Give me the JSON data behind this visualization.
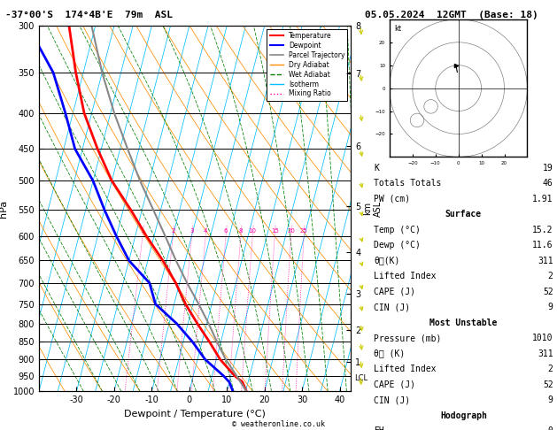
{
  "title_left": "-37°00'S  174°4B'E  79m  ASL",
  "title_right": "05.05.2024  12GMT  (Base: 18)",
  "xlabel": "Dewpoint / Temperature (°C)",
  "ylabel_left": "hPa",
  "xlim": [
    -40,
    43
  ],
  "pressure_levels": [
    300,
    350,
    400,
    450,
    500,
    550,
    600,
    650,
    700,
    750,
    800,
    850,
    900,
    950,
    1000
  ],
  "temp_profile": {
    "pressure": [
      1000,
      970,
      950,
      900,
      850,
      800,
      750,
      700,
      650,
      600,
      550,
      500,
      450,
      400,
      350,
      300
    ],
    "temp": [
      15.2,
      13.5,
      11.0,
      6.0,
      2.0,
      -2.5,
      -7.0,
      -11.0,
      -16.0,
      -22.0,
      -28.0,
      -35.0,
      -41.0,
      -47.0,
      -52.0,
      -57.0
    ]
  },
  "dewp_profile": {
    "pressure": [
      1000,
      970,
      950,
      900,
      850,
      800,
      750,
      700,
      650,
      600,
      550,
      500,
      450,
      400,
      350,
      300
    ],
    "dewp": [
      11.6,
      10.0,
      8.0,
      2.0,
      -2.5,
      -8.0,
      -15.0,
      -18.0,
      -25.0,
      -30.0,
      -35.0,
      -40.0,
      -47.0,
      -52.0,
      -58.0,
      -68.0
    ]
  },
  "parcel_profile": {
    "pressure": [
      1000,
      950,
      900,
      850,
      800,
      750,
      700,
      650,
      600,
      550,
      500,
      450,
      400,
      350,
      300
    ],
    "temp": [
      15.2,
      11.5,
      7.5,
      4.0,
      0.5,
      -3.5,
      -8.0,
      -12.5,
      -17.0,
      -22.0,
      -27.5,
      -33.0,
      -39.0,
      -45.0,
      -51.0
    ]
  },
  "skew_factor": 25.0,
  "temp_color": "#ff0000",
  "dewp_color": "#0000ff",
  "parcel_color": "#888888",
  "dry_adiabat_color": "#ff8c00",
  "wet_adiabat_color": "#008000",
  "isotherm_color": "#00bfff",
  "mixing_ratio_color": "#ff00aa",
  "background_color": "#ffffff",
  "mixing_ratio_labels": [
    1,
    2,
    3,
    4,
    6,
    8,
    10,
    15,
    20,
    25
  ],
  "km_ticks": [
    1,
    2,
    3,
    4,
    5,
    6,
    7,
    8
  ],
  "km_pressures": [
    895,
    795,
    695,
    595,
    500,
    400,
    305,
    255
  ],
  "lcl_pressure": 958,
  "wind_barb_pressures": [
    1000,
    950,
    900,
    850,
    800,
    750,
    700,
    650,
    600,
    550,
    500,
    450,
    400,
    350,
    300
  ],
  "wind_speeds_kt": [
    7,
    7,
    8,
    9,
    10,
    11,
    12,
    13,
    14,
    15,
    16,
    17,
    18,
    20,
    22
  ],
  "wind_directions_deg": [
    349,
    349,
    340,
    335,
    330,
    325,
    320,
    315,
    315,
    320,
    325,
    330,
    335,
    340,
    345
  ],
  "footer": "© weatheronline.co.uk"
}
